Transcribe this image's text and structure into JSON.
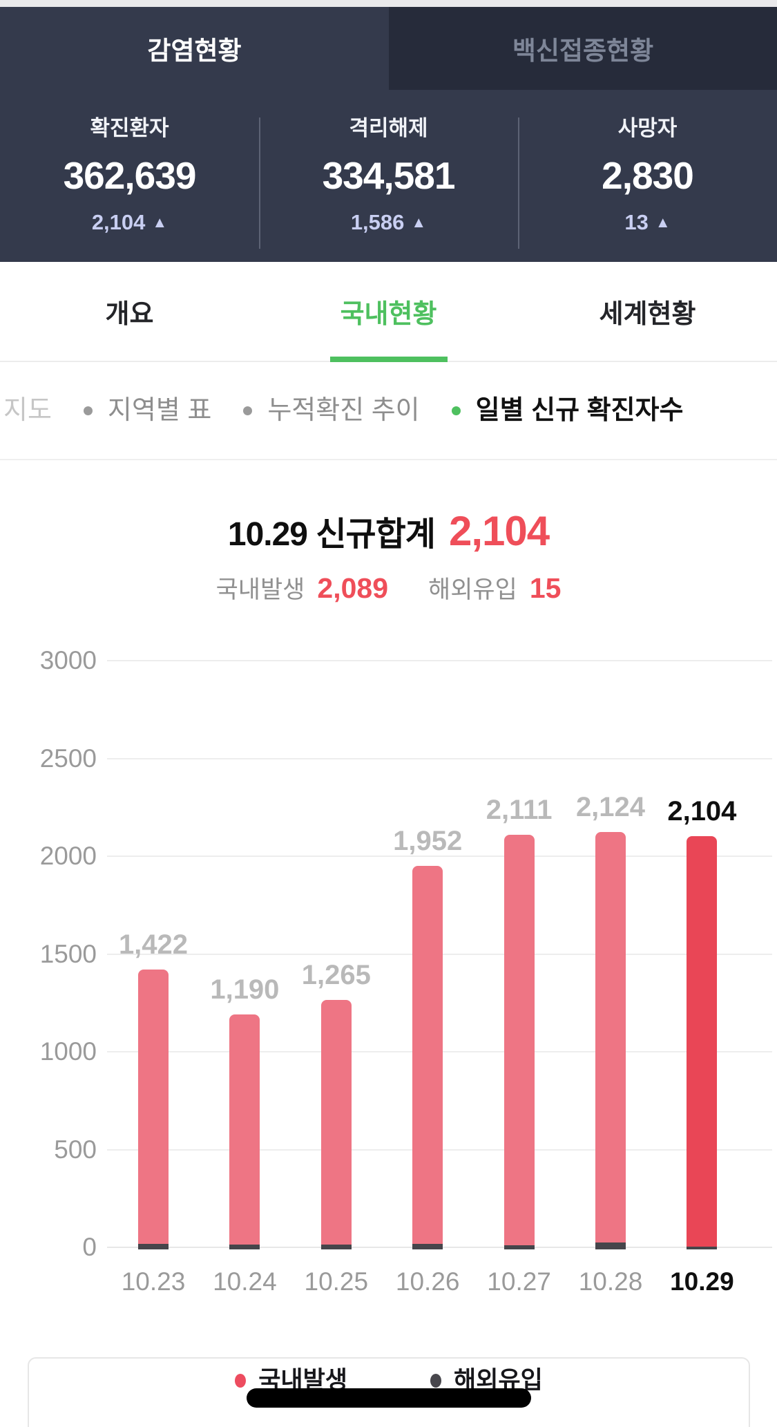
{
  "header": {
    "tabs": [
      {
        "label": "감염현황",
        "active": true
      },
      {
        "label": "백신접종현황",
        "active": false
      }
    ],
    "stats": [
      {
        "label": "확진환자",
        "value": "362,639",
        "delta": "2,104",
        "delta_dir": "up"
      },
      {
        "label": "격리해제",
        "value": "334,581",
        "delta": "1,586",
        "delta_dir": "up"
      },
      {
        "label": "사망자",
        "value": "2,830",
        "delta": "13",
        "delta_dir": "up"
      }
    ]
  },
  "nav_tabs": [
    {
      "label": "개요",
      "active": false
    },
    {
      "label": "국내현황",
      "active": true
    },
    {
      "label": "세계현황",
      "active": false
    }
  ],
  "filters": [
    {
      "label": "지도",
      "state": "faded"
    },
    {
      "label": "지역별 표",
      "state": "normal"
    },
    {
      "label": "누적확진 추이",
      "state": "normal"
    },
    {
      "label": "일별 신규 확진자수",
      "state": "active"
    }
  ],
  "summary": {
    "title": "10.29 신규합계",
    "total": "2,104",
    "domestic_label": "국내발생",
    "domestic_value": "2,089",
    "imported_label": "해외유입",
    "imported_value": "15"
  },
  "chart_data": {
    "type": "bar",
    "stacked": true,
    "title": "10.29 신규합계 2,104",
    "categories": [
      "10.23",
      "10.24",
      "10.25",
      "10.26",
      "10.27",
      "10.28",
      "10.29"
    ],
    "totals": [
      1422,
      1190,
      1265,
      1952,
      2111,
      2124,
      2104
    ],
    "total_labels": [
      "1,422",
      "1,190",
      "1,265",
      "1,952",
      "2,111",
      "2,124",
      "2,104"
    ],
    "series": [
      {
        "name": "국내발생",
        "values": [
          1392,
          1165,
          1240,
          1924,
          2089,
          2089,
          2089
        ]
      },
      {
        "name": "해외유입",
        "values": [
          30,
          25,
          25,
          28,
          22,
          35,
          15
        ]
      }
    ],
    "highlight_index": 6,
    "ylim": [
      0,
      3000
    ],
    "yticks": [
      0,
      500,
      1000,
      1500,
      2000,
      2500,
      3000
    ],
    "grid": true,
    "legend_position": "bottom",
    "colors": {
      "domestic_past": "#ee7584",
      "domestic_current": "#e94656",
      "imported": "#46454b",
      "label_past": "#b9b9b9",
      "label_current": "#0f0f0f"
    }
  },
  "legend": [
    {
      "label": "국내발생",
      "color": "#ed4c5f"
    },
    {
      "label": "해외유입",
      "color": "#48474d"
    }
  ],
  "icons": {
    "up_triangle": "▲",
    "bullet": "●"
  },
  "accent_colors": {
    "green": "#4ec05f",
    "red": "#ef4e59",
    "header_bg": "#343a4c",
    "header_bg_dark": "#262b3a",
    "delta_text": "#c9cff2"
  }
}
